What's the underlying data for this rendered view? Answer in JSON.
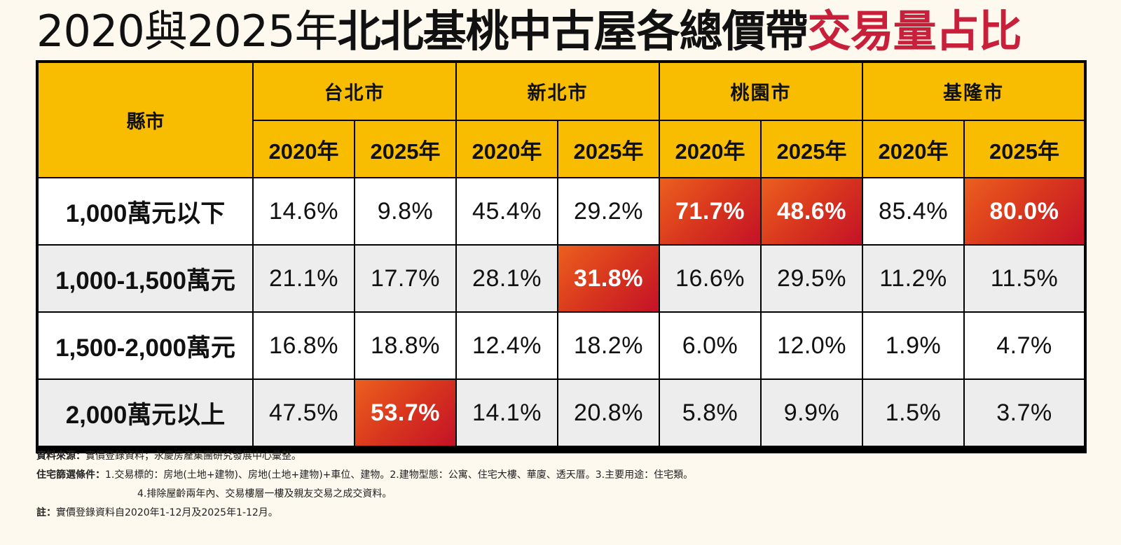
{
  "title": {
    "part1": "2020與2025年",
    "part2": "北北基桃中古屋各總價帶",
    "part3": "交易量占比"
  },
  "colors": {
    "header_bg": "#F8BD00",
    "highlight_start": "#EC5F1F",
    "highlight_end": "#C41227",
    "title_accent": "#C8203A",
    "row_alt_bg": "#EDEDED"
  },
  "chart_data": {
    "type": "table",
    "corner_header": "縣市",
    "cities": [
      "台北市",
      "新北市",
      "桃園市",
      "基隆市"
    ],
    "years": [
      "2020年",
      "2025年"
    ],
    "columns": [
      "台北市 2020年",
      "台北市 2025年",
      "新北市 2020年",
      "新北市 2025年",
      "桃園市 2020年",
      "桃園市 2025年",
      "基隆市 2020年",
      "基隆市 2025年"
    ],
    "rows": [
      {
        "label": "1,000萬元以下",
        "cells": [
          "14.6%",
          "9.8%",
          "45.4%",
          "29.2%",
          "71.7%",
          "48.6%",
          "85.4%",
          "80.0%"
        ],
        "highlight": [
          false,
          false,
          false,
          false,
          true,
          true,
          false,
          true
        ]
      },
      {
        "label": "1,000-1,500萬元",
        "cells": [
          "21.1%",
          "17.7%",
          "28.1%",
          "31.8%",
          "16.6%",
          "29.5%",
          "11.2%",
          "11.5%"
        ],
        "highlight": [
          false,
          false,
          false,
          true,
          false,
          false,
          false,
          false
        ]
      },
      {
        "label": "1,500-2,000萬元",
        "cells": [
          "16.8%",
          "18.8%",
          "12.4%",
          "18.2%",
          "6.0%",
          "12.0%",
          "1.9%",
          "4.7%"
        ],
        "highlight": [
          false,
          false,
          false,
          false,
          false,
          false,
          false,
          false
        ]
      },
      {
        "label": "2,000萬元以上",
        "cells": [
          "47.5%",
          "53.7%",
          "14.1%",
          "20.8%",
          "5.8%",
          "9.9%",
          "1.5%",
          "3.7%"
        ],
        "highlight": [
          false,
          true,
          false,
          false,
          false,
          false,
          false,
          false
        ]
      }
    ]
  },
  "notes": {
    "source_label": "資料來源：",
    "source_text": "實價登錄資料；永慶房產集團研究發展中心彙整。",
    "criteria_label": "住宅篩選條件：",
    "criteria_text": "1.交易標的：房地(土地+建物)、房地(土地+建物)+車位、建物。2.建物型態：公寓、住宅大樓、華廈、透天厝。3.主要用途：住宅類。",
    "criteria_text_2": "4.排除屋齡兩年內、交易樓層一樓及親友交易之成交資料。",
    "remark_label": "註：",
    "remark_text": "實價登錄資料自2020年1-12月及2025年1-12月。"
  }
}
